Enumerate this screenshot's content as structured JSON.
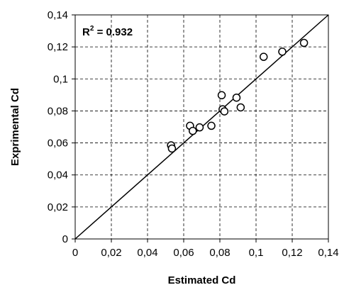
{
  "chart_data": {
    "type": "scatter",
    "xlabel": "Estimated Cd",
    "ylabel": "Exprimental Cd",
    "xlim": [
      0,
      0.14
    ],
    "ylim": [
      0,
      0.14
    ],
    "x_ticks": [
      0,
      0.02,
      0.04,
      0.06,
      0.08,
      0.1,
      0.12,
      0.14
    ],
    "y_ticks": [
      0,
      0.02,
      0.04,
      0.06,
      0.08,
      0.1,
      0.12,
      0.14
    ],
    "x_tick_labels": [
      "0",
      "0,02",
      "0,04",
      "0,06",
      "0,08",
      "0,1",
      "0,12",
      "0,14"
    ],
    "y_tick_labels": [
      "0",
      "0,02",
      "0,04",
      "0,06",
      "0,08",
      "0,1",
      "0,12",
      "0,14"
    ],
    "grid": true,
    "reference_line": {
      "x": [
        0,
        0.14
      ],
      "y": [
        0,
        0.14
      ]
    },
    "annotation": {
      "r_label": "R",
      "superscript": "2",
      "text": " =  0.932"
    },
    "points": [
      {
        "x": 0.053,
        "y": 0.0585
      },
      {
        "x": 0.0535,
        "y": 0.0565
      },
      {
        "x": 0.0635,
        "y": 0.0707
      },
      {
        "x": 0.065,
        "y": 0.0675
      },
      {
        "x": 0.0688,
        "y": 0.0697
      },
      {
        "x": 0.0753,
        "y": 0.0707
      },
      {
        "x": 0.081,
        "y": 0.0898
      },
      {
        "x": 0.0815,
        "y": 0.081
      },
      {
        "x": 0.0825,
        "y": 0.0797
      },
      {
        "x": 0.0892,
        "y": 0.0883
      },
      {
        "x": 0.0915,
        "y": 0.0822
      },
      {
        "x": 0.1042,
        "y": 0.1138
      },
      {
        "x": 0.1145,
        "y": 0.117
      },
      {
        "x": 0.1265,
        "y": 0.1225
      }
    ]
  }
}
